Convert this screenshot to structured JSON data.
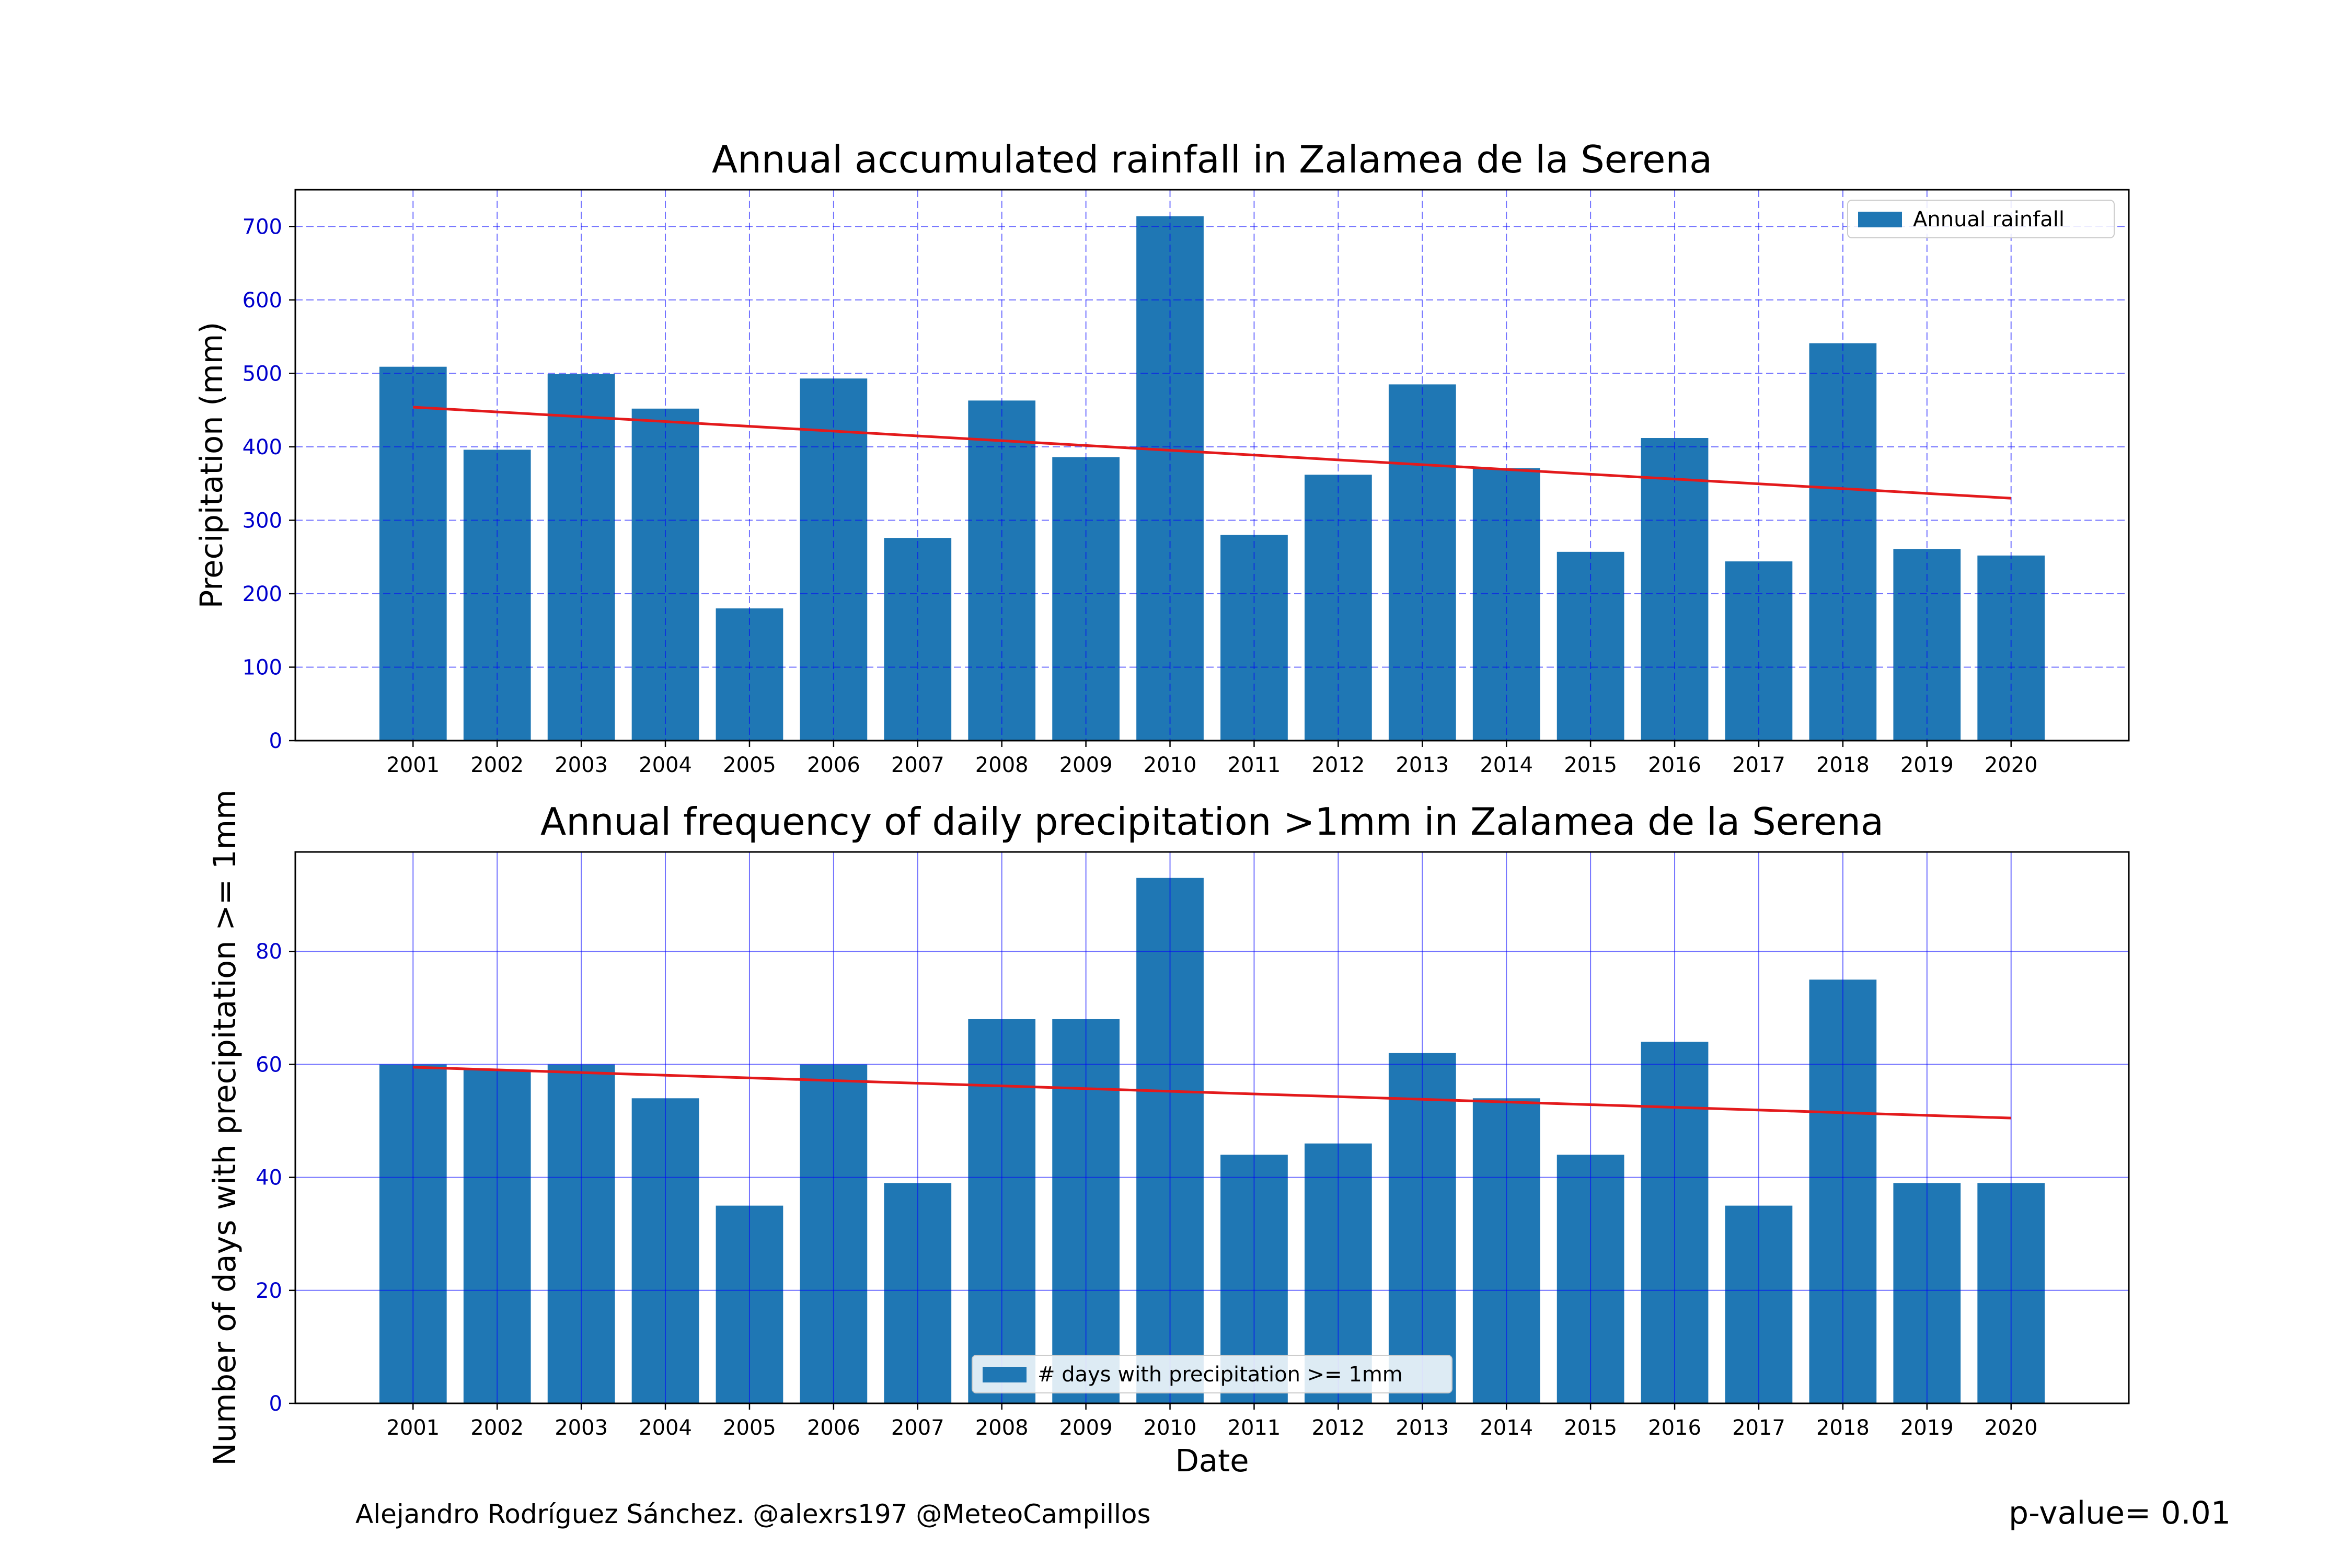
{
  "chart_data": [
    {
      "type": "bar",
      "title": "Annual accumulated rainfall in Zalamea de la Serena",
      "xlabel": "",
      "ylabel": "Precipitation (mm)",
      "categories": [
        "2001",
        "2002",
        "2003",
        "2004",
        "2005",
        "2006",
        "2007",
        "2008",
        "2009",
        "2010",
        "2011",
        "2012",
        "2013",
        "2014",
        "2015",
        "2016",
        "2017",
        "2018",
        "2019",
        "2020"
      ],
      "series": [
        {
          "name": "Annual rainfall",
          "color": "#1f77b4",
          "values": [
            509,
            396,
            499,
            452,
            180,
            493,
            276,
            463,
            386,
            714,
            280,
            362,
            485,
            371,
            257,
            412,
            244,
            541,
            261,
            252
          ]
        }
      ],
      "trend": {
        "color": "#e31a1c",
        "start": 454,
        "end": 330
      },
      "ylim": [
        0,
        750
      ],
      "yticks": [
        0,
        100,
        200,
        300,
        400,
        500,
        600,
        700
      ],
      "grid": {
        "on": true,
        "style": "dashed",
        "color": "#0000ff"
      },
      "legend_position": "upper right",
      "tick_label_color": "#0000cc"
    },
    {
      "type": "bar",
      "title": "Annual frequency of daily precipitation >1mm in Zalamea de la Serena",
      "xlabel": "Date",
      "ylabel": "Number of days with precipitation >= 1mm",
      "categories": [
        "2001",
        "2002",
        "2003",
        "2004",
        "2005",
        "2006",
        "2007",
        "2008",
        "2009",
        "2010",
        "2011",
        "2012",
        "2013",
        "2014",
        "2015",
        "2016",
        "2017",
        "2018",
        "2019",
        "2020"
      ],
      "series": [
        {
          "name": "# days with precipitation >= 1mm",
          "color": "#1f77b4",
          "values": [
            60,
            59,
            60,
            54,
            35,
            60,
            39,
            68,
            68,
            93,
            44,
            46,
            62,
            54,
            44,
            64,
            35,
            75,
            39,
            39
          ]
        }
      ],
      "trend": {
        "color": "#e31a1c",
        "start": 59.5,
        "end": 50.5
      },
      "ylim": [
        0,
        97.6
      ],
      "yticks": [
        0,
        20,
        40,
        60,
        80
      ],
      "grid": {
        "on": true,
        "style": "solid",
        "color": "#0000ff"
      },
      "legend_position": "lower center",
      "tick_label_color": "#0000cc"
    }
  ],
  "footer": {
    "credit": "Alejandro Rodríguez Sánchez. @alexrs197 @MeteoCampillos",
    "pvalue": "p-value= 0.01"
  }
}
